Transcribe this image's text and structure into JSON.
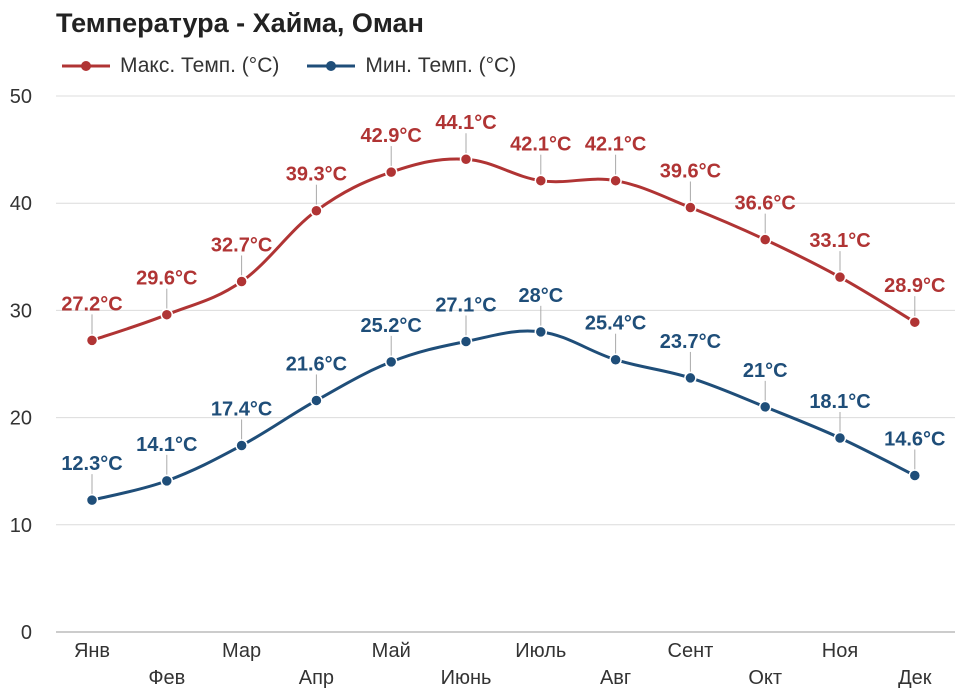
{
  "chart_data": {
    "type": "line",
    "title": "Температура - Хайма, Оман",
    "categories": [
      "Янв",
      "Фев",
      "Мар",
      "Апр",
      "Май",
      "Июнь",
      "Июль",
      "Авг",
      "Сент",
      "Окт",
      "Ноя",
      "Дек"
    ],
    "series": [
      {
        "name": "Макс. Темп. (°C)",
        "color": "#b03434",
        "values": [
          27.2,
          29.6,
          32.7,
          39.3,
          42.9,
          44.1,
          42.1,
          42.1,
          39.6,
          36.6,
          33.1,
          28.9
        ],
        "labels": [
          "27.2°C",
          "29.6°C",
          "32.7°C",
          "39.3°C",
          "42.9°C",
          "44.1°C",
          "42.1°C",
          "42.1°C",
          "39.6°C",
          "36.6°C",
          "33.1°C",
          "28.9°C"
        ]
      },
      {
        "name": "Мин. Темп. (°C)",
        "color": "#1f4e79",
        "values": [
          12.3,
          14.1,
          17.4,
          21.6,
          25.2,
          27.1,
          28,
          25.4,
          23.7,
          21,
          18.1,
          14.6
        ],
        "labels": [
          "12.3°C",
          "14.1°C",
          "17.4°C",
          "21.6°C",
          "25.2°C",
          "27.1°C",
          "28°C",
          "25.4°C",
          "23.7°C",
          "21°C",
          "18.1°C",
          "14.6°C"
        ]
      }
    ],
    "ylim": [
      0,
      50
    ],
    "yticks": [
      "0",
      "10",
      "20",
      "30",
      "40",
      "50"
    ],
    "grid": true,
    "legend_position": "top-left"
  }
}
